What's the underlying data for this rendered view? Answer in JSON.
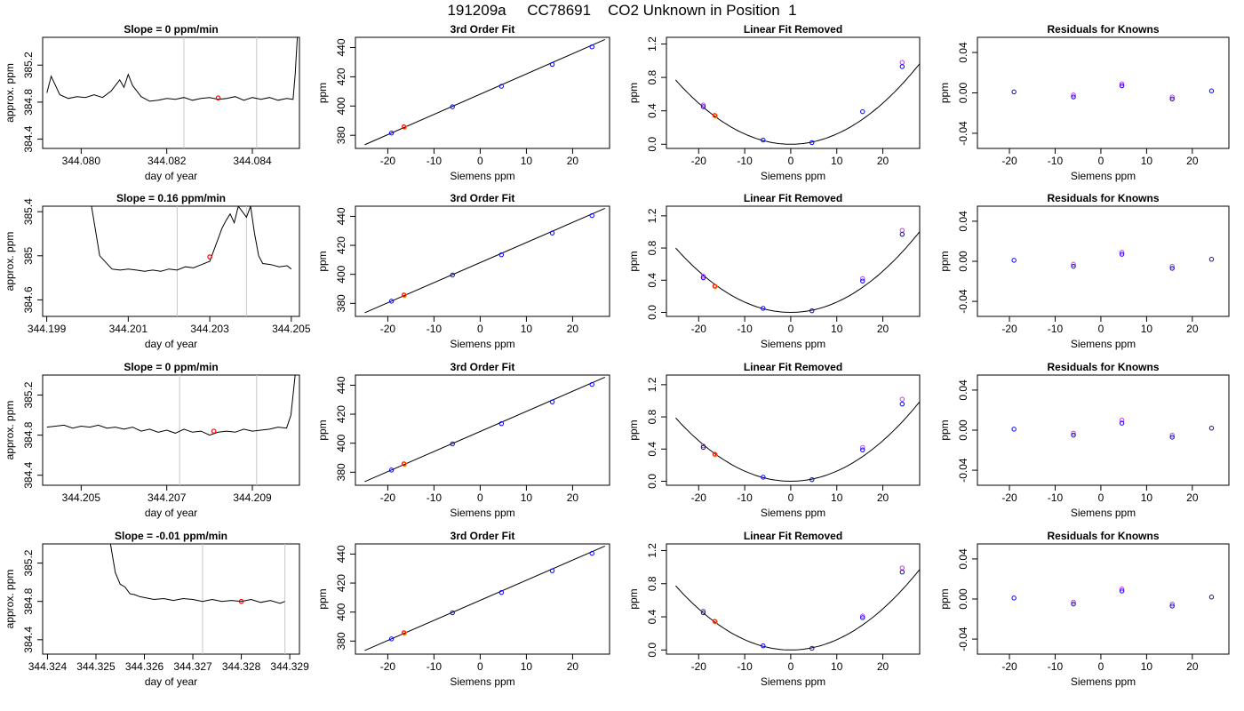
{
  "page": {
    "title": "191209a     CC78691    CO2 Unknown in Position  1"
  },
  "common": {
    "xlabel_fit": "Siemens ppm",
    "ylabel_fit": "ppm",
    "ylabel_ts": "approx. ppm",
    "xlabel_ts": "day of year",
    "title_fit": "3rd Order Fit",
    "title_lin": "Linear Fit Removed",
    "title_res": "Residuals for Knowns",
    "colors": {
      "line": "#000000",
      "known": "#0000ff",
      "known_alt": "#cc33ff",
      "unknown": "#ff0000",
      "unknown_alt": "#ff8c00",
      "vline": "#c8c8c8"
    }
  },
  "chart_data": [
    {
      "type": "line",
      "panel": "timeseries",
      "row": 0,
      "title": "Slope =  0  ppm/min",
      "xlabel": "day of year",
      "ylabel": "approx. ppm",
      "xlim": [
        344.0791,
        344.0851
      ],
      "ylim": [
        384.3,
        385.5
      ],
      "xticks": [
        344.08,
        344.082,
        344.084
      ],
      "xtick_decimals": 3,
      "yticks": [
        384.4,
        384.8,
        385.2
      ],
      "vlines": [
        344.0824,
        344.0841
      ],
      "x": [
        344.0792,
        344.0793,
        344.0795,
        344.0797,
        344.0799,
        344.0801,
        344.0803,
        344.0805,
        344.0807,
        344.0809,
        344.081,
        344.0811,
        344.0812,
        344.0813,
        344.0814,
        344.0816,
        344.0818,
        344.082,
        344.0822,
        344.0824,
        344.0826,
        344.0828,
        344.083,
        344.0832,
        344.0834,
        344.0836,
        344.0838,
        344.084,
        344.0842,
        344.0844,
        344.0846,
        344.0848,
        344.08495,
        344.085,
        344.08505
      ],
      "y": [
        384.9,
        385.08,
        384.88,
        384.84,
        384.86,
        384.85,
        384.88,
        384.85,
        384.92,
        385.04,
        384.96,
        385.1,
        384.98,
        384.92,
        384.86,
        384.81,
        384.82,
        384.84,
        384.83,
        384.85,
        384.82,
        384.84,
        384.85,
        384.83,
        384.84,
        384.86,
        384.82,
        384.85,
        384.83,
        384.85,
        384.82,
        384.84,
        384.83,
        385.1,
        385.5
      ],
      "marker": {
        "x": 344.0832,
        "y": 384.845
      }
    },
    {
      "type": "scatter",
      "panel": "fit",
      "row": 0,
      "title": "3rd Order Fit",
      "xlabel": "Siemens ppm",
      "ylabel": "ppm",
      "xlim": [
        -27,
        28
      ],
      "ylim": [
        371,
        447
      ],
      "xticks": [
        -20,
        -10,
        0,
        10,
        20
      ],
      "yticks": [
        380,
        400,
        420,
        440
      ],
      "fit_line": {
        "x": [
          -25,
          27
        ],
        "y": [
          373.5,
          445.5
        ]
      },
      "knowns": {
        "x": [
          -19.2,
          -6.0,
          4.6,
          15.6,
          24.2
        ],
        "y": [
          381.5,
          399.5,
          413.5,
          428.5,
          440.5
        ]
      },
      "unknown": {
        "x": [
          -16.4
        ],
        "y": [
          385.5
        ]
      }
    },
    {
      "type": "scatter",
      "panel": "linear_removed",
      "row": 0,
      "title": "Linear Fit Removed",
      "xlabel": "Siemens ppm",
      "ylabel": "ppm",
      "xlim": [
        -27,
        28
      ],
      "ylim": [
        -0.05,
        1.28
      ],
      "xticks": [
        -20,
        -10,
        0,
        10,
        20
      ],
      "yticks": [
        0.0,
        0.4,
        0.8,
        1.2
      ],
      "ytick_decimals": 1,
      "curve": {
        "a": 0.00123,
        "b": 0.0
      },
      "knowns": {
        "x": [
          -19.0,
          -6.0,
          4.6,
          15.6,
          24.2
        ],
        "y": [
          0.45,
          0.05,
          0.02,
          0.39,
          0.93
        ]
      },
      "knowns_alt": {
        "x": [
          -19.0,
          24.2
        ],
        "y": [
          0.47,
          0.98
        ]
      },
      "unknown": {
        "x": [
          -16.4
        ],
        "y": [
          0.34
        ]
      }
    },
    {
      "type": "scatter",
      "panel": "residuals",
      "row": 0,
      "title": "Residuals for Knowns",
      "xlabel": "Siemens ppm",
      "ylabel": "ppm",
      "xlim": [
        -27,
        28
      ],
      "ylim": [
        -0.055,
        0.055
      ],
      "xticks": [
        -20,
        -10,
        0,
        10,
        20
      ],
      "yticks": [
        -0.04,
        0.0,
        0.04
      ],
      "ytick_decimals": 2,
      "knowns": {
        "x": [
          -19.0,
          -6.0,
          4.6,
          15.6,
          24.2
        ],
        "y": [
          0.001,
          -0.004,
          0.007,
          -0.006,
          0.002
        ]
      },
      "knowns_alt": {
        "x": [
          -6.0,
          4.6,
          15.6
        ],
        "y": [
          -0.002,
          0.009,
          -0.004
        ]
      }
    },
    {
      "type": "line",
      "panel": "timeseries",
      "row": 1,
      "title": "Slope =  0.16  ppm/min",
      "xlabel": "day of year",
      "ylabel": "approx. ppm",
      "xlim": [
        344.1989,
        344.2052
      ],
      "ylim": [
        384.45,
        385.45
      ],
      "xticks": [
        344.199,
        344.201,
        344.203,
        344.205
      ],
      "xtick_decimals": 3,
      "yticks": [
        384.6,
        385.0,
        385.4
      ],
      "vlines": [
        344.2022,
        344.2039
      ],
      "x": [
        344.2001,
        344.2003,
        344.2005,
        344.2006,
        344.2008,
        344.201,
        344.2012,
        344.2014,
        344.2016,
        344.2018,
        344.202,
        344.2022,
        344.2024,
        344.2026,
        344.2028,
        344.203,
        344.2031,
        344.2032,
        344.2033,
        344.2034,
        344.2035,
        344.2036,
        344.2037,
        344.2038,
        344.2039,
        344.204,
        344.2041,
        344.2042,
        344.2043,
        344.2045,
        344.2047,
        344.2049,
        344.205
      ],
      "y": [
        385.45,
        385.0,
        384.92,
        384.88,
        384.87,
        384.88,
        384.87,
        384.86,
        384.87,
        384.86,
        384.88,
        384.87,
        384.9,
        384.89,
        384.92,
        384.95,
        385.05,
        385.15,
        385.25,
        385.32,
        385.38,
        385.3,
        385.45,
        385.4,
        385.35,
        385.45,
        385.2,
        385.0,
        384.93,
        384.92,
        384.9,
        384.91,
        384.88
      ],
      "marker": {
        "x": 344.203,
        "y": 384.99
      }
    },
    {
      "type": "scatter",
      "panel": "fit",
      "row": 1,
      "title": "3rd Order Fit",
      "xlabel": "Siemens ppm",
      "ylabel": "ppm",
      "xlim": [
        -27,
        28
      ],
      "ylim": [
        371,
        447
      ],
      "xticks": [
        -20,
        -10,
        0,
        10,
        20
      ],
      "yticks": [
        380,
        400,
        420,
        440
      ],
      "fit_line": {
        "x": [
          -25,
          27
        ],
        "y": [
          373.5,
          445.5
        ]
      },
      "knowns": {
        "x": [
          -19.2,
          -6.0,
          4.6,
          15.6,
          24.2
        ],
        "y": [
          381.5,
          399.5,
          413.5,
          428.5,
          440.5
        ]
      },
      "unknown": {
        "x": [
          -16.4
        ],
        "y": [
          385.5
        ]
      }
    },
    {
      "type": "scatter",
      "panel": "linear_removed",
      "row": 1,
      "title": "Linear Fit Removed",
      "xlabel": "Siemens ppm",
      "ylabel": "ppm",
      "xlim": [
        -27,
        28
      ],
      "ylim": [
        -0.05,
        1.32
      ],
      "xticks": [
        -20,
        -10,
        0,
        10,
        20
      ],
      "yticks": [
        0.0,
        0.4,
        0.8,
        1.2
      ],
      "ytick_decimals": 1,
      "curve": {
        "a": 0.00128,
        "b": 0.0
      },
      "knowns": {
        "x": [
          -19.0,
          -6.0,
          4.6,
          15.6,
          24.2
        ],
        "y": [
          0.43,
          0.05,
          0.02,
          0.39,
          0.97
        ]
      },
      "knowns_alt": {
        "x": [
          -19.0,
          15.6,
          24.2
        ],
        "y": [
          0.45,
          0.42,
          1.02
        ]
      },
      "unknown": {
        "x": [
          -16.4
        ],
        "y": [
          0.32
        ]
      }
    },
    {
      "type": "scatter",
      "panel": "residuals",
      "row": 1,
      "title": "Residuals for Knowns",
      "xlabel": "Siemens ppm",
      "ylabel": "ppm",
      "xlim": [
        -27,
        28
      ],
      "ylim": [
        -0.055,
        0.055
      ],
      "xticks": [
        -20,
        -10,
        0,
        10,
        20
      ],
      "yticks": [
        -0.04,
        0.0,
        0.04
      ],
      "ytick_decimals": 2,
      "knowns": {
        "x": [
          -19.0,
          -6.0,
          4.6,
          15.6,
          24.2
        ],
        "y": [
          0.001,
          -0.005,
          0.007,
          -0.007,
          0.002
        ]
      },
      "knowns_alt": {
        "x": [
          -6.0,
          4.6,
          15.6
        ],
        "y": [
          -0.003,
          0.009,
          -0.005
        ]
      }
    },
    {
      "type": "line",
      "panel": "timeseries",
      "row": 2,
      "title": "Slope =  0  ppm/min",
      "xlabel": "day of year",
      "ylabel": "approx. ppm",
      "xlim": [
        344.2041,
        344.2101
      ],
      "ylim": [
        384.3,
        385.4
      ],
      "xticks": [
        344.205,
        344.207,
        344.209
      ],
      "xtick_decimals": 3,
      "yticks": [
        384.4,
        384.8,
        385.2
      ],
      "vlines": [
        344.2073,
        344.2091
      ],
      "x": [
        344.2042,
        344.2044,
        344.2046,
        344.2048,
        344.205,
        344.2052,
        344.2054,
        344.2056,
        344.2058,
        344.206,
        344.2062,
        344.2064,
        344.2066,
        344.2068,
        344.207,
        344.2072,
        344.2074,
        344.2076,
        344.2078,
        344.208,
        344.2082,
        344.2084,
        344.2086,
        344.2088,
        344.209,
        344.2092,
        344.2094,
        344.2096,
        344.2098,
        344.2099,
        344.20995,
        344.21
      ],
      "y": [
        384.88,
        384.89,
        384.9,
        384.87,
        384.89,
        384.88,
        384.9,
        384.87,
        384.88,
        384.86,
        384.88,
        384.84,
        384.86,
        384.83,
        384.85,
        384.82,
        384.86,
        384.83,
        384.84,
        384.8,
        384.83,
        384.84,
        384.83,
        384.86,
        384.84,
        384.85,
        384.86,
        384.88,
        384.87,
        385.0,
        385.2,
        385.4
      ],
      "marker": {
        "x": 344.2081,
        "y": 384.84
      }
    },
    {
      "type": "scatter",
      "panel": "fit",
      "row": 2,
      "title": "3rd Order Fit",
      "xlabel": "Siemens ppm",
      "ylabel": "ppm",
      "xlim": [
        -27,
        28
      ],
      "ylim": [
        371,
        447
      ],
      "xticks": [
        -20,
        -10,
        0,
        10,
        20
      ],
      "yticks": [
        380,
        400,
        420,
        440
      ],
      "fit_line": {
        "x": [
          -25,
          27
        ],
        "y": [
          373.5,
          445.5
        ]
      },
      "knowns": {
        "x": [
          -19.2,
          -6.0,
          4.6,
          15.6,
          24.2
        ],
        "y": [
          381.5,
          399.5,
          413.5,
          428.5,
          440.5
        ]
      },
      "unknown": {
        "x": [
          -16.4
        ],
        "y": [
          385.5
        ]
      }
    },
    {
      "type": "scatter",
      "panel": "linear_removed",
      "row": 2,
      "title": "Linear Fit Removed",
      "xlabel": "Siemens ppm",
      "ylabel": "ppm",
      "xlim": [
        -27,
        28
      ],
      "ylim": [
        -0.05,
        1.32
      ],
      "xticks": [
        -20,
        -10,
        0,
        10,
        20
      ],
      "yticks": [
        0.0,
        0.4,
        0.8,
        1.2
      ],
      "ytick_decimals": 1,
      "curve": {
        "a": 0.00126,
        "b": 0.0
      },
      "knowns": {
        "x": [
          -19.0,
          -6.0,
          4.6,
          15.6,
          24.2
        ],
        "y": [
          0.42,
          0.05,
          0.02,
          0.39,
          0.96
        ]
      },
      "knowns_alt": {
        "x": [
          -19.0,
          15.6,
          24.2
        ],
        "y": [
          0.44,
          0.42,
          1.02
        ]
      },
      "unknown": {
        "x": [
          -16.4
        ],
        "y": [
          0.33
        ]
      }
    },
    {
      "type": "scatter",
      "panel": "residuals",
      "row": 2,
      "title": "Residuals for Knowns",
      "xlabel": "Siemens ppm",
      "ylabel": "ppm",
      "xlim": [
        -27,
        28
      ],
      "ylim": [
        -0.055,
        0.055
      ],
      "xticks": [
        -20,
        -10,
        0,
        10,
        20
      ],
      "yticks": [
        -0.04,
        0.0,
        0.04
      ],
      "ytick_decimals": 2,
      "knowns": {
        "x": [
          -19.0,
          -6.0,
          4.6,
          15.6,
          24.2
        ],
        "y": [
          0.001,
          -0.005,
          0.007,
          -0.007,
          0.002
        ]
      },
      "knowns_alt": {
        "x": [
          -6.0,
          4.6,
          15.6
        ],
        "y": [
          -0.003,
          0.01,
          -0.005
        ]
      }
    },
    {
      "type": "line",
      "panel": "timeseries",
      "row": 3,
      "title": "Slope =  -0.01  ppm/min",
      "xlabel": "day of year",
      "ylabel": "approx. ppm",
      "xlim": [
        344.3239,
        344.3292
      ],
      "ylim": [
        384.25,
        385.4
      ],
      "xticks": [
        344.324,
        344.325,
        344.326,
        344.327,
        344.328,
        344.329
      ],
      "xtick_decimals": 3,
      "yticks": [
        384.4,
        384.8,
        385.2
      ],
      "vlines": [
        344.3272,
        344.3289
      ],
      "x": [
        344.3253,
        344.3254,
        344.3255,
        344.3256,
        344.3257,
        344.3258,
        344.3259,
        344.326,
        344.3262,
        344.3264,
        344.3266,
        344.3268,
        344.327,
        344.3272,
        344.3274,
        344.3276,
        344.3278,
        344.328,
        344.3282,
        344.3284,
        344.3286,
        344.3288,
        344.3289
      ],
      "y": [
        385.4,
        385.1,
        384.98,
        384.95,
        384.88,
        384.87,
        384.85,
        384.84,
        384.82,
        384.83,
        384.81,
        384.83,
        384.82,
        384.8,
        384.82,
        384.8,
        384.81,
        384.8,
        384.82,
        384.79,
        384.81,
        384.78,
        384.8
      ],
      "marker": {
        "x": 344.328,
        "y": 384.8
      }
    },
    {
      "type": "scatter",
      "panel": "fit",
      "row": 3,
      "title": "3rd Order Fit",
      "xlabel": "Siemens ppm",
      "ylabel": "ppm",
      "xlim": [
        -27,
        28
      ],
      "ylim": [
        371,
        447
      ],
      "xticks": [
        -20,
        -10,
        0,
        10,
        20
      ],
      "yticks": [
        380,
        400,
        420,
        440
      ],
      "fit_line": {
        "x": [
          -25,
          27
        ],
        "y": [
          373.5,
          445.5
        ]
      },
      "knowns": {
        "x": [
          -19.2,
          -6.0,
          4.6,
          15.6,
          24.2
        ],
        "y": [
          381.5,
          399.5,
          413.5,
          428.5,
          440.5
        ]
      },
      "unknown": {
        "x": [
          -16.4
        ],
        "y": [
          385.5
        ]
      }
    },
    {
      "type": "scatter",
      "panel": "linear_removed",
      "row": 3,
      "title": "Linear Fit Removed",
      "xlabel": "Siemens ppm",
      "ylabel": "ppm",
      "xlim": [
        -27,
        28
      ],
      "ylim": [
        -0.05,
        1.28
      ],
      "xticks": [
        -20,
        -10,
        0,
        10,
        20
      ],
      "yticks": [
        0.0,
        0.4,
        0.8,
        1.2
      ],
      "ytick_decimals": 1,
      "curve": {
        "a": 0.00124,
        "b": 0.0
      },
      "knowns": {
        "x": [
          -19.0,
          -6.0,
          4.6,
          15.6,
          24.2
        ],
        "y": [
          0.45,
          0.05,
          0.02,
          0.39,
          0.94
        ]
      },
      "knowns_alt": {
        "x": [
          -19.0,
          15.6,
          24.2
        ],
        "y": [
          0.47,
          0.41,
          0.99
        ]
      },
      "unknown": {
        "x": [
          -16.4
        ],
        "y": [
          0.34
        ]
      }
    },
    {
      "type": "scatter",
      "panel": "residuals",
      "row": 3,
      "title": "Residuals for Knowns",
      "xlabel": "Siemens ppm",
      "ylabel": "ppm",
      "xlim": [
        -27,
        28
      ],
      "ylim": [
        -0.055,
        0.055
      ],
      "xticks": [
        -20,
        -10,
        0,
        10,
        20
      ],
      "yticks": [
        -0.04,
        0.0,
        0.04
      ],
      "ytick_decimals": 2,
      "knowns": {
        "x": [
          -19.0,
          -6.0,
          4.6,
          15.6,
          24.2
        ],
        "y": [
          0.001,
          -0.005,
          0.008,
          -0.007,
          0.002
        ]
      },
      "knowns_alt": {
        "x": [
          -6.0,
          4.6,
          15.6
        ],
        "y": [
          -0.003,
          0.01,
          -0.005
        ]
      }
    }
  ]
}
